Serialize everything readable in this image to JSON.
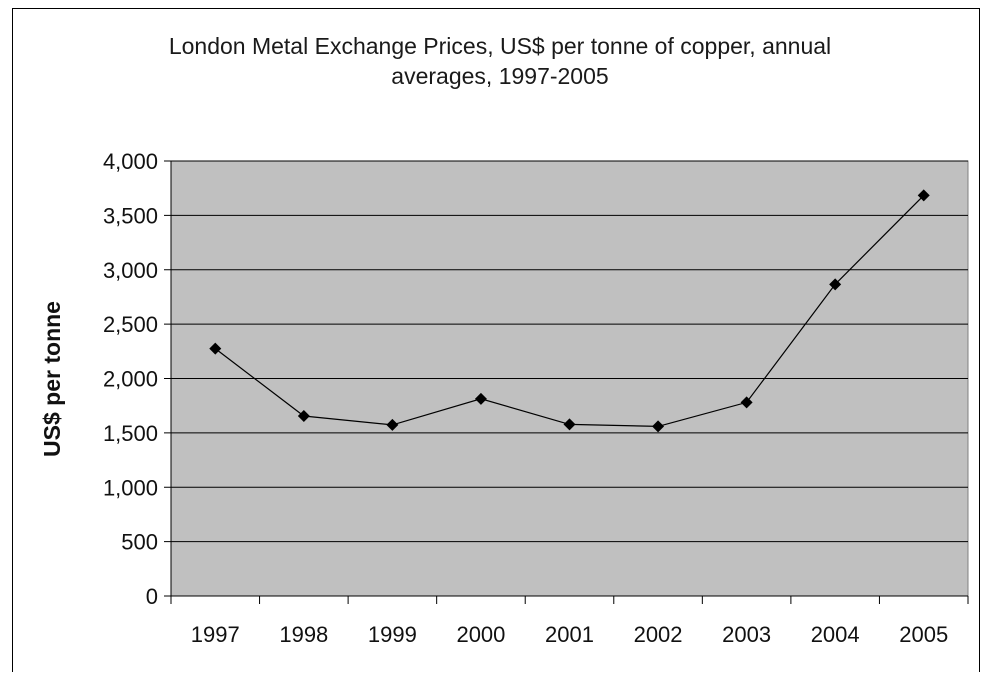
{
  "chart_data": {
    "type": "line",
    "title_lines": [
      "London Metal Exchange Prices, US$ per tonne of copper, annual",
      "averages, 1997-2005"
    ],
    "xlabel": "",
    "ylabel": "US$ per tonne",
    "categories": [
      "1997",
      "1998",
      "1999",
      "2000",
      "2001",
      "2002",
      "2003",
      "2004",
      "2005"
    ],
    "series": [
      {
        "values": [
          2275,
          1655,
          1573,
          1813,
          1578,
          1560,
          1780,
          2866,
          3684
        ]
      }
    ],
    "ylim": [
      0,
      4000
    ],
    "yticks": [
      0,
      500,
      1000,
      1500,
      2000,
      2500,
      3000,
      3500,
      4000
    ],
    "ytick_labels": [
      "0",
      "500",
      "1,000",
      "1,500",
      "2,000",
      "2,500",
      "3,000",
      "3,500",
      "4,000"
    ],
    "grid": "horizontal",
    "legend": "none",
    "colors": {
      "plot_background": "#c0c0c0",
      "gridline": "#000000",
      "line": "#000000",
      "marker": "#000000"
    },
    "marker": "diamond"
  }
}
